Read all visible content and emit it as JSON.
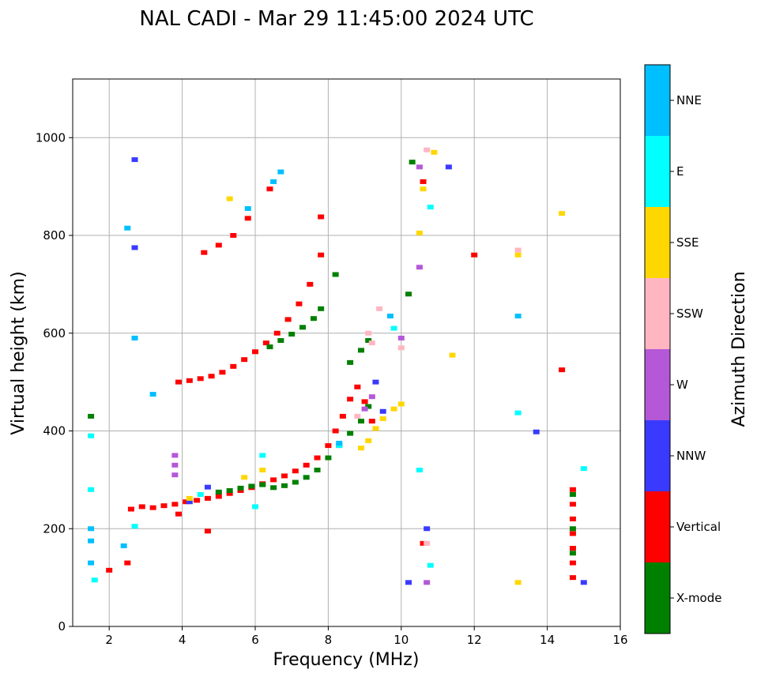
{
  "chart_data": {
    "type": "scatter",
    "title": "NAL CADI - Mar 29 11:45:00 2024 UTC",
    "xlabel": "Frequency (MHz)",
    "ylabel": "Virtual height (km)",
    "xlim": [
      1,
      16
    ],
    "ylim": [
      0,
      1120
    ],
    "xticks": [
      2,
      4,
      6,
      8,
      10,
      12,
      14,
      16
    ],
    "yticks": [
      0,
      200,
      400,
      600,
      800,
      1000
    ],
    "grid": true,
    "colorbar": {
      "title": "Azimuth Direction",
      "categories": [
        {
          "name": "X-mode",
          "color": "#008000"
        },
        {
          "name": "Vertical",
          "color": "#ff0000"
        },
        {
          "name": "NNW",
          "color": "#3a3aff"
        },
        {
          "name": "W",
          "color": "#b558d8"
        },
        {
          "name": "SSW",
          "color": "#ffb6c1"
        },
        {
          "name": "SSE",
          "color": "#ffd700"
        },
        {
          "name": "E",
          "color": "#00ffff"
        },
        {
          "name": "NNE",
          "color": "#00bfff"
        }
      ]
    },
    "series": [
      {
        "name": "Vertical",
        "points": [
          [
            2.6,
            240
          ],
          [
            2.9,
            245
          ],
          [
            3.2,
            243
          ],
          [
            3.5,
            247
          ],
          [
            3.8,
            250
          ],
          [
            4.1,
            255
          ],
          [
            4.4,
            258
          ],
          [
            4.7,
            262
          ],
          [
            5.0,
            266
          ],
          [
            5.3,
            272
          ],
          [
            5.6,
            278
          ],
          [
            5.9,
            284
          ],
          [
            6.2,
            292
          ],
          [
            6.5,
            300
          ],
          [
            6.8,
            308
          ],
          [
            7.1,
            318
          ],
          [
            7.4,
            330
          ],
          [
            7.7,
            345
          ],
          [
            8.0,
            370
          ],
          [
            8.2,
            400
          ],
          [
            8.4,
            430
          ],
          [
            8.6,
            465
          ],
          [
            8.8,
            490
          ],
          [
            9.0,
            460
          ],
          [
            9.2,
            420
          ],
          [
            3.9,
            500
          ],
          [
            4.2,
            503
          ],
          [
            4.5,
            507
          ],
          [
            4.8,
            512
          ],
          [
            5.1,
            520
          ],
          [
            5.4,
            532
          ],
          [
            5.7,
            546
          ],
          [
            6.0,
            562
          ],
          [
            6.3,
            580
          ],
          [
            6.6,
            600
          ],
          [
            6.9,
            628
          ],
          [
            7.2,
            660
          ],
          [
            7.5,
            700
          ],
          [
            7.8,
            760
          ],
          [
            4.6,
            765
          ],
          [
            5.0,
            780
          ],
          [
            5.4,
            800
          ],
          [
            5.8,
            835
          ],
          [
            6.4,
            895
          ],
          [
            7.8,
            838
          ],
          [
            10.6,
            170
          ],
          [
            10.6,
            910
          ],
          [
            12.0,
            760
          ],
          [
            14.4,
            525
          ],
          [
            14.7,
            280
          ],
          [
            14.7,
            250
          ],
          [
            14.7,
            220
          ],
          [
            14.7,
            190
          ],
          [
            14.7,
            160
          ],
          [
            14.7,
            130
          ],
          [
            14.7,
            100
          ],
          [
            2.0,
            115
          ],
          [
            2.5,
            130
          ],
          [
            3.9,
            230
          ],
          [
            4.7,
            195
          ]
        ]
      },
      {
        "name": "X-mode",
        "points": [
          [
            5.0,
            275
          ],
          [
            5.3,
            278
          ],
          [
            5.6,
            283
          ],
          [
            5.9,
            287
          ],
          [
            6.2,
            290
          ],
          [
            6.5,
            284
          ],
          [
            6.8,
            288
          ],
          [
            7.1,
            295
          ],
          [
            7.4,
            305
          ],
          [
            7.7,
            320
          ],
          [
            8.0,
            345
          ],
          [
            8.3,
            370
          ],
          [
            8.6,
            395
          ],
          [
            8.9,
            420
          ],
          [
            9.1,
            450
          ],
          [
            8.6,
            540
          ],
          [
            8.9,
            565
          ],
          [
            9.1,
            585
          ],
          [
            6.4,
            572
          ],
          [
            6.7,
            585
          ],
          [
            7.0,
            598
          ],
          [
            7.3,
            612
          ],
          [
            7.6,
            630
          ],
          [
            7.8,
            650
          ],
          [
            8.2,
            720
          ],
          [
            10.2,
            680
          ],
          [
            10.3,
            950
          ],
          [
            14.7,
            270
          ],
          [
            14.7,
            200
          ],
          [
            14.7,
            150
          ],
          [
            1.5,
            430
          ]
        ]
      },
      {
        "name": "NNW",
        "points": [
          [
            2.7,
            955
          ],
          [
            2.7,
            775
          ],
          [
            9.3,
            500
          ],
          [
            9.5,
            440
          ],
          [
            10.7,
            200
          ],
          [
            11.3,
            940
          ],
          [
            13.7,
            398
          ],
          [
            15.0,
            90
          ],
          [
            10.2,
            90
          ],
          [
            4.2,
            255
          ],
          [
            4.7,
            285
          ]
        ]
      },
      {
        "name": "W",
        "points": [
          [
            3.8,
            350
          ],
          [
            3.8,
            330
          ],
          [
            3.8,
            310
          ],
          [
            9.0,
            445
          ],
          [
            9.2,
            470
          ],
          [
            10.7,
            90
          ],
          [
            10.5,
            940
          ],
          [
            10.5,
            735
          ],
          [
            10.0,
            590
          ]
        ]
      },
      {
        "name": "SSW",
        "points": [
          [
            9.4,
            650
          ],
          [
            9.1,
            600
          ],
          [
            9.2,
            580
          ],
          [
            10.0,
            570
          ],
          [
            10.7,
            170
          ],
          [
            10.7,
            975
          ],
          [
            13.2,
            770
          ],
          [
            8.8,
            430
          ]
        ]
      },
      {
        "name": "SSE",
        "points": [
          [
            8.9,
            365
          ],
          [
            9.1,
            380
          ],
          [
            9.3,
            405
          ],
          [
            9.5,
            425
          ],
          [
            9.8,
            445
          ],
          [
            10.0,
            455
          ],
          [
            5.7,
            305
          ],
          [
            6.2,
            320
          ],
          [
            10.6,
            895
          ],
          [
            10.5,
            805
          ],
          [
            10.9,
            970
          ],
          [
            11.4,
            555
          ],
          [
            13.2,
            90
          ],
          [
            13.2,
            760
          ],
          [
            14.4,
            845
          ],
          [
            5.3,
            875
          ],
          [
            4.2,
            262
          ]
        ]
      },
      {
        "name": "E",
        "points": [
          [
            1.5,
            390
          ],
          [
            1.5,
            280
          ],
          [
            1.6,
            95
          ],
          [
            2.7,
            205
          ],
          [
            2.7,
            590
          ],
          [
            6.0,
            245
          ],
          [
            8.3,
            370
          ],
          [
            9.8,
            610
          ],
          [
            10.5,
            320
          ],
          [
            10.8,
            125
          ],
          [
            10.8,
            858
          ],
          [
            13.2,
            437
          ],
          [
            15.0,
            323
          ],
          [
            6.2,
            350
          ],
          [
            4.5,
            270
          ]
        ]
      },
      {
        "name": "NNE",
        "points": [
          [
            1.5,
            130
          ],
          [
            1.5,
            175
          ],
          [
            1.5,
            200
          ],
          [
            2.5,
            815
          ],
          [
            2.7,
            590
          ],
          [
            3.2,
            475
          ],
          [
            5.8,
            855
          ],
          [
            6.5,
            910
          ],
          [
            6.7,
            930
          ],
          [
            9.7,
            635
          ],
          [
            13.2,
            635
          ],
          [
            2.4,
            165
          ],
          [
            8.3,
            375
          ]
        ]
      }
    ]
  }
}
